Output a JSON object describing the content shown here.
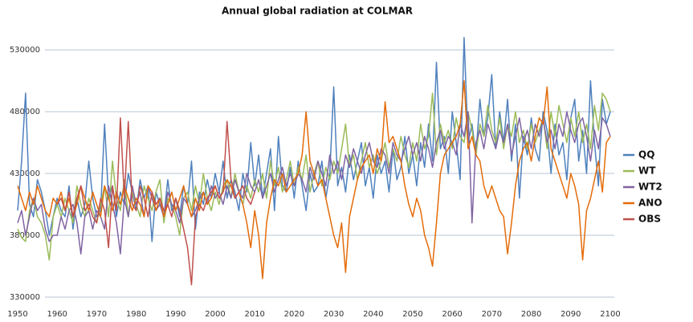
{
  "chart_data": {
    "type": "line",
    "title": "Annual global radiation at COLMAR",
    "x": [
      1950,
      1951,
      1952,
      1953,
      1954,
      1955,
      1956,
      1957,
      1958,
      1959,
      1960,
      1961,
      1962,
      1963,
      1964,
      1965,
      1966,
      1967,
      1968,
      1969,
      1970,
      1971,
      1972,
      1973,
      1974,
      1975,
      1976,
      1977,
      1978,
      1979,
      1980,
      1981,
      1982,
      1983,
      1984,
      1985,
      1986,
      1987,
      1988,
      1989,
      1990,
      1991,
      1992,
      1993,
      1994,
      1995,
      1996,
      1997,
      1998,
      1999,
      2000,
      2001,
      2002,
      2003,
      2004,
      2005,
      2006,
      2007,
      2008,
      2009,
      2010,
      2011,
      2012,
      2013,
      2014,
      2015,
      2016,
      2017,
      2018,
      2019,
      2020,
      2021,
      2022,
      2023,
      2024,
      2025,
      2026,
      2027,
      2028,
      2029,
      2030,
      2031,
      2032,
      2033,
      2034,
      2035,
      2036,
      2037,
      2038,
      2039,
      2040,
      2041,
      2042,
      2043,
      2044,
      2045,
      2046,
      2047,
      2048,
      2049,
      2050,
      2051,
      2052,
      2053,
      2054,
      2055,
      2056,
      2057,
      2058,
      2059,
      2060,
      2061,
      2062,
      2063,
      2064,
      2065,
      2066,
      2067,
      2068,
      2069,
      2070,
      2071,
      2072,
      2073,
      2074,
      2075,
      2076,
      2077,
      2078,
      2079,
      2080,
      2081,
      2082,
      2083,
      2084,
      2085,
      2086,
      2087,
      2088,
      2089,
      2090,
      2091,
      2092,
      2093,
      2094,
      2095,
      2096,
      2097,
      2098,
      2099,
      2100
    ],
    "series": [
      {
        "name": "QQ",
        "color": "#4f81bd",
        "values": [
          400000,
          440000,
          495000,
          405000,
          395000,
          425000,
          415000,
          400000,
          380000,
          395000,
          410000,
          400000,
          395000,
          420000,
          385000,
          410000,
          395000,
          405000,
          440000,
          410000,
          395000,
          400000,
          470000,
          410000,
          420000,
          395000,
          415000,
          405000,
          430000,
          415000,
          400000,
          425000,
          410000,
          420000,
          375000,
          415000,
          405000,
          395000,
          425000,
          400000,
          410000,
          395000,
          420000,
          405000,
          440000,
          385000,
          415000,
          405000,
          425000,
          410000,
          430000,
          415000,
          440000,
          410000,
          425000,
          415000,
          400000,
          430000,
          415000,
          455000,
          420000,
          445000,
          410000,
          430000,
          450000,
          400000,
          460000,
          420000,
          415000,
          435000,
          410000,
          440000,
          420000,
          400000,
          430000,
          415000,
          420000,
          440000,
          410000,
          430000,
          500000,
          420000,
          435000,
          415000,
          445000,
          425000,
          440000,
          455000,
          420000,
          435000,
          410000,
          445000,
          430000,
          440000,
          415000,
          450000,
          425000,
          435000,
          460000,
          430000,
          445000,
          420000,
          455000,
          435000,
          470000,
          440000,
          520000,
          450000,
          460000,
          430000,
          480000,
          455000,
          425000,
          540000,
          455000,
          470000,
          445000,
          490000,
          460000,
          475000,
          510000,
          450000,
          480000,
          455000,
          490000,
          440000,
          470000,
          410000,
          460000,
          445000,
          475000,
          450000,
          440000,
          480000,
          465000,
          430000,
          470000,
          445000,
          455000,
          425000,
          475000,
          490000,
          440000,
          465000,
          430000,
          505000,
          455000,
          420000,
          490000,
          470000,
          480000
        ]
      },
      {
        "name": "WT",
        "color": "#9bbb59",
        "values": [
          385000,
          378000,
          375000,
          400000,
          410000,
          395000,
          390000,
          380000,
          360000,
          395000,
          405000,
          395000,
          410000,
          400000,
          390000,
          420000,
          405000,
          395000,
          410000,
          400000,
          390000,
          405000,
          420000,
          395000,
          440000,
          410000,
          400000,
          425000,
          395000,
          415000,
          405000,
          395000,
          420000,
          410000,
          400000,
          415000,
          425000,
          390000,
          410000,
          405000,
          395000,
          380000,
          410000,
          415000,
          400000,
          420000,
          405000,
          430000,
          410000,
          400000,
          415000,
          405000,
          420000,
          425000,
          410000,
          430000,
          415000,
          405000,
          420000,
          410000,
          425000,
          415000,
          430000,
          410000,
          440000,
          420000,
          435000,
          415000,
          425000,
          440000,
          420000,
          435000,
          425000,
          445000,
          415000,
          430000,
          440000,
          420000,
          435000,
          425000,
          440000,
          430000,
          450000,
          470000,
          435000,
          445000,
          425000,
          440000,
          455000,
          435000,
          445000,
          430000,
          440000,
          455000,
          435000,
          450000,
          440000,
          460000,
          445000,
          435000,
          455000,
          440000,
          470000,
          450000,
          460000,
          495000,
          445000,
          470000,
          455000,
          465000,
          450000,
          475000,
          460000,
          455000,
          480000,
          465000,
          445000,
          470000,
          460000,
          485000,
          465000,
          455000,
          475000,
          450000,
          470000,
          460000,
          480000,
          455000,
          465000,
          450000,
          470000,
          455000,
          465000,
          475000,
          450000,
          480000,
          460000,
          485000,
          470000,
          455000,
          475000,
          460000,
          480000,
          455000,
          470000,
          450000,
          485000,
          465000,
          495000,
          490000,
          480000
        ]
      },
      {
        "name": "WT2",
        "color": "#8064a2",
        "values": [
          390000,
          400000,
          380000,
          395000,
          410000,
          400000,
          405000,
          385000,
          375000,
          380000,
          380000,
          395000,
          385000,
          400000,
          405000,
          390000,
          365000,
          395000,
          400000,
          385000,
          400000,
          395000,
          385000,
          420000,
          405000,
          390000,
          365000,
          410000,
          395000,
          420000,
          405000,
          415000,
          395000,
          420000,
          410000,
          400000,
          405000,
          395000,
          415000,
          405000,
          400000,
          390000,
          410000,
          405000,
          395000,
          400000,
          410000,
          415000,
          405000,
          420000,
          410000,
          415000,
          405000,
          420000,
          410000,
          425000,
          415000,
          410000,
          430000,
          420000,
          415000,
          425000,
          410000,
          420000,
          430000,
          415000,
          425000,
          435000,
          420000,
          430000,
          420000,
          430000,
          425000,
          415000,
          435000,
          425000,
          440000,
          430000,
          420000,
          445000,
          430000,
          440000,
          425000,
          445000,
          435000,
          450000,
          440000,
          430000,
          445000,
          455000,
          440000,
          435000,
          450000,
          445000,
          430000,
          455000,
          445000,
          440000,
          450000,
          460000,
          445000,
          455000,
          440000,
          460000,
          450000,
          435000,
          455000,
          465000,
          450000,
          460000,
          455000,
          445000,
          470000,
          460000,
          480000,
          390000,
          455000,
          465000,
          450000,
          470000,
          460000,
          450000,
          465000,
          455000,
          470000,
          445000,
          460000,
          475000,
          455000,
          465000,
          450000,
          470000,
          460000,
          475000,
          455000,
          465000,
          450000,
          470000,
          460000,
          480000,
          465000,
          455000,
          470000,
          475000,
          460000,
          440000,
          465000,
          450000,
          475000,
          470000,
          460000
        ]
      },
      {
        "name": "ANO",
        "color": "#e46c0a",
        "values": [
          420000,
          410000,
          400000,
          415000,
          405000,
          420000,
          410000,
          400000,
          395000,
          410000,
          405000,
          415000,
          400000,
          410000,
          395000,
          405000,
          420000,
          410000,
          400000,
          415000,
          405000,
          395000,
          420000,
          410000,
          400000,
          415000,
          405000,
          420000,
          410000,
          400000,
          410000,
          405000,
          395000,
          420000,
          415000,
          400000,
          410000,
          395000,
          405000,
          415000,
          400000,
          410000,
          420000,
          405000,
          395000,
          410000,
          400000,
          415000,
          405000,
          410000,
          420000,
          410000,
          415000,
          425000,
          420000,
          410000,
          415000,
          405000,
          390000,
          370000,
          400000,
          380000,
          345000,
          390000,
          410000,
          425000,
          420000,
          430000,
          415000,
          420000,
          425000,
          430000,
          445000,
          480000,
          440000,
          430000,
          420000,
          425000,
          410000,
          395000,
          380000,
          370000,
          390000,
          350000,
          395000,
          410000,
          425000,
          435000,
          440000,
          445000,
          430000,
          450000,
          440000,
          488000,
          455000,
          460000,
          450000,
          440000,
          420000,
          405000,
          395000,
          410000,
          400000,
          380000,
          370000,
          355000,
          390000,
          430000,
          445000,
          450000,
          455000,
          460000,
          470000,
          505000,
          450000,
          460000,
          445000,
          440000,
          420000,
          410000,
          420000,
          410000,
          400000,
          395000,
          365000,
          390000,
          420000,
          440000,
          450000,
          455000,
          440000,
          460000,
          475000,
          470000,
          500000,
          450000,
          440000,
          430000,
          420000,
          410000,
          430000,
          420000,
          405000,
          360000,
          400000,
          410000,
          425000,
          440000,
          415000,
          455000,
          460000
        ]
      },
      {
        "name": "OBS",
        "color": "#c0504d",
        "values": [
          null,
          null,
          null,
          null,
          null,
          null,
          null,
          null,
          null,
          null,
          405000,
          410000,
          400000,
          415000,
          395000,
          410000,
          420000,
          400000,
          405000,
          395000,
          390000,
          410000,
          400000,
          370000,
          420000,
          400000,
          475000,
          410000,
          472000,
          405000,
          400000,
          420000,
          410000,
          395000,
          415000,
          405000,
          410000,
          400000,
          405000,
          395000,
          410000,
          400000,
          385000,
          370000,
          340000,
          395000,
          405000,
          400000,
          410000,
          415000,
          420000,
          410000,
          415000,
          472000,
          425000,
          410000,
          415000,
          420000,
          410000,
          405000,
          415000,
          null,
          null,
          null,
          null,
          null,
          null,
          null,
          null,
          null,
          null,
          null,
          null,
          null,
          null,
          null,
          null,
          null,
          null,
          null,
          null,
          null,
          null,
          null,
          null,
          null,
          null,
          null,
          null,
          null,
          null,
          null,
          null,
          null,
          null,
          null,
          null,
          null,
          null,
          null,
          null,
          null,
          null,
          null,
          null,
          null,
          null,
          null,
          null,
          null,
          null,
          null,
          null,
          null,
          null,
          null,
          null,
          null,
          null,
          null,
          null,
          null,
          null,
          null,
          null,
          null,
          null,
          null,
          null,
          null,
          null,
          null,
          null,
          null,
          null,
          null,
          null,
          null,
          null,
          null,
          null,
          null,
          null,
          null,
          null,
          null,
          null,
          null,
          null,
          null,
          null
        ]
      }
    ],
    "xlim": [
      1950,
      2100
    ],
    "xticks": [
      1950,
      1960,
      1970,
      1980,
      1990,
      2000,
      2010,
      2020,
      2030,
      2040,
      2050,
      2060,
      2070,
      2080,
      2090,
      2100
    ],
    "ylim": [
      330000,
      545000
    ],
    "yticks": [
      330000,
      380000,
      430000,
      480000,
      530000
    ],
    "grid": true,
    "legend": "right"
  }
}
